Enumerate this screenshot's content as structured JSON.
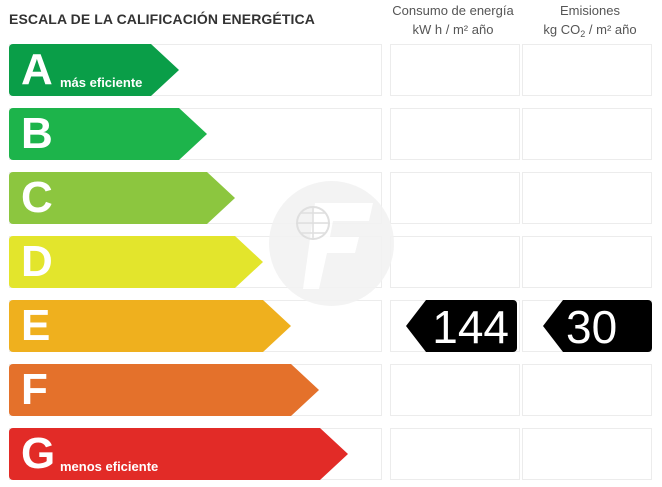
{
  "header": {
    "title": "ESCALA DE LA CALIFICACIÓN ENERGÉTICA",
    "energy_col_line1": "Consumo de energía",
    "energy_col_line2": "kW h  / m² año",
    "emissions_col_line1": "Emisiones",
    "emissions_col_line2_pre": "kg CO",
    "emissions_col_line2_sub": "2",
    "emissions_col_line2_post": "  / m² año"
  },
  "ratings": [
    {
      "letter": "A",
      "label": "más eficiente",
      "color": "#0a9e48"
    },
    {
      "letter": "B",
      "label": "",
      "color": "#1db44b"
    },
    {
      "letter": "C",
      "label": "",
      "color": "#8cc63f"
    },
    {
      "letter": "D",
      "label": "",
      "color": "#e3e52c"
    },
    {
      "letter": "E",
      "label": "",
      "color": "#efb01e"
    },
    {
      "letter": "F",
      "label": "",
      "color": "#e4712b"
    },
    {
      "letter": "G",
      "label": "menos eficiente",
      "color": "#e22b27"
    }
  ],
  "current_rating": {
    "letter": "E",
    "energy_value": "144",
    "emissions_value": "30"
  },
  "watermark": {
    "icon": "letter-f-logo"
  }
}
